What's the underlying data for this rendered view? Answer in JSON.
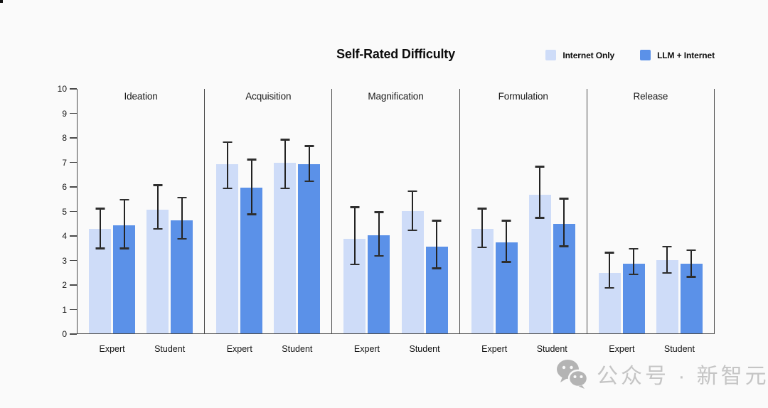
{
  "title": "Self-Rated Difficulty",
  "watermark": {
    "icon": "wechat-logo-icon",
    "text": "公众号 · 新智元"
  },
  "colors": {
    "background": "#fafafa",
    "axis": "#4a4a4a",
    "error_bar": "#232323",
    "watermark_gray": "#b4b4b4",
    "watermark_text_gray": "#c5c5c5"
  },
  "chart_data": {
    "type": "bar",
    "title": "Self-Rated Difficulty",
    "xlabel": "",
    "ylabel": "",
    "ylim": [
      0,
      10
    ],
    "yticks": [
      0,
      1,
      2,
      3,
      4,
      5,
      6,
      7,
      8,
      9,
      10
    ],
    "grid": false,
    "error_bars": true,
    "legend_position": "top-right",
    "series_names": [
      "Internet Only",
      "LLM + Internet"
    ],
    "series_colors": [
      "#cedcf8",
      "#5b91e8"
    ],
    "group_labels": [
      "Expert",
      "Student"
    ],
    "panels": [
      {
        "label": "Ideation",
        "groups": [
          {
            "label": "Expert",
            "values": [
              4.25,
              4.4
            ],
            "err_low": [
              3.45,
              3.45
            ],
            "err_high": [
              5.1,
              5.45
            ]
          },
          {
            "label": "Student",
            "values": [
              5.05,
              4.6
            ],
            "err_low": [
              4.25,
              3.85
            ],
            "err_high": [
              6.05,
              5.55
            ]
          }
        ]
      },
      {
        "label": "Acquisition",
        "groups": [
          {
            "label": "Expert",
            "values": [
              6.9,
              5.95
            ],
            "err_low": [
              5.9,
              4.85
            ],
            "err_high": [
              7.8,
              7.1
            ]
          },
          {
            "label": "Student",
            "values": [
              6.95,
              6.9
            ],
            "err_low": [
              5.9,
              6.2
            ],
            "err_high": [
              7.9,
              7.65
            ]
          }
        ]
      },
      {
        "label": "Magnification",
        "groups": [
          {
            "label": "Expert",
            "values": [
              3.85,
              4.0
            ],
            "err_low": [
              2.8,
              3.15
            ],
            "err_high": [
              5.15,
              4.95
            ]
          },
          {
            "label": "Student",
            "values": [
              5.0,
              3.55
            ],
            "err_low": [
              4.2,
              2.65
            ],
            "err_high": [
              5.8,
              4.6
            ]
          }
        ]
      },
      {
        "label": "Formulation",
        "groups": [
          {
            "label": "Expert",
            "values": [
              4.25,
              3.7
            ],
            "err_low": [
              3.5,
              2.9
            ],
            "err_high": [
              5.1,
              4.6
            ]
          },
          {
            "label": "Student",
            "values": [
              5.65,
              4.45
            ],
            "err_low": [
              4.7,
              3.55
            ],
            "err_high": [
              6.8,
              5.5
            ]
          }
        ]
      },
      {
        "label": "Release",
        "groups": [
          {
            "label": "Expert",
            "values": [
              2.45,
              2.85
            ],
            "err_low": [
              1.85,
              2.4
            ],
            "err_high": [
              3.3,
              3.45
            ]
          },
          {
            "label": "Student",
            "values": [
              3.0,
              2.85
            ],
            "err_low": [
              2.45,
              2.3
            ],
            "err_high": [
              3.55,
              3.4
            ]
          }
        ]
      }
    ]
  }
}
